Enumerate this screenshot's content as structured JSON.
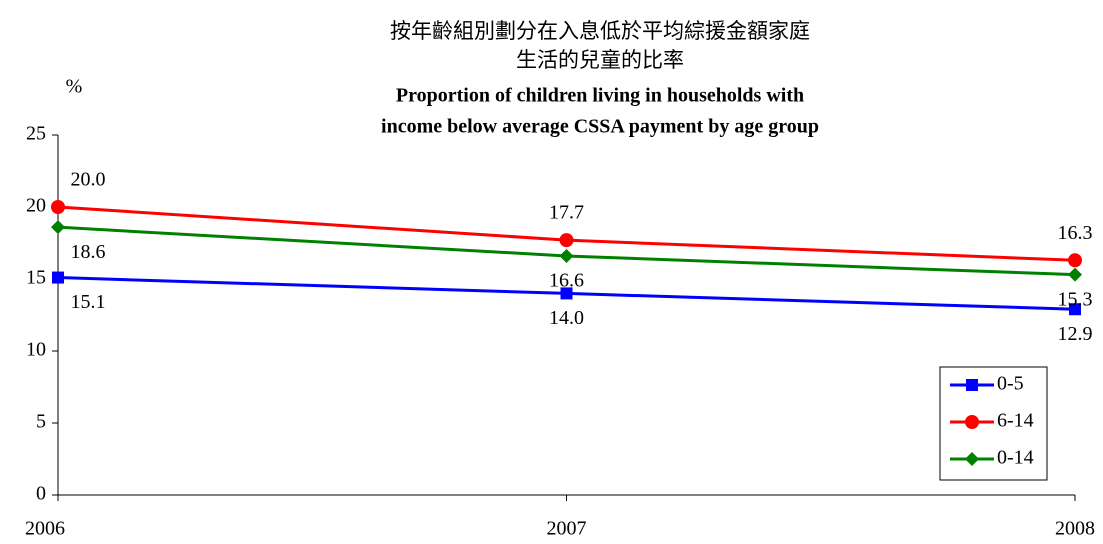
{
  "chart_data": {
    "type": "line",
    "title": "按年齡組別劃分在入息低於平均綜援金額家庭",
    "title_line2": "生活的兒童的比率",
    "subtitle": "Proportion of children living in households with",
    "subtitle_line2": "income below average CSSA payment  by age group",
    "y_label": "%",
    "categories": [
      "2006",
      "2007",
      "2008"
    ],
    "series": [
      {
        "name": "0-5",
        "color": "#0000ff",
        "marker": "square",
        "values": [
          15.1,
          14.0,
          12.9
        ],
        "value_labels": [
          "15.1",
          "14.0",
          "12.9"
        ]
      },
      {
        "name": "6-14",
        "color": "#ff0000",
        "marker": "circle",
        "values": [
          20.0,
          17.7,
          16.3
        ],
        "value_labels": [
          "20.0",
          "17.7",
          "16.3"
        ]
      },
      {
        "name": "0-14",
        "color": "#008000",
        "marker": "diamond",
        "values": [
          18.6,
          16.6,
          15.3
        ],
        "value_labels": [
          "18.6",
          "16.6",
          "15.3"
        ]
      }
    ],
    "ylim": [
      0,
      25
    ],
    "yticks": [
      0,
      5,
      10,
      15,
      20,
      25
    ],
    "grid": false,
    "legend": "lower right"
  }
}
